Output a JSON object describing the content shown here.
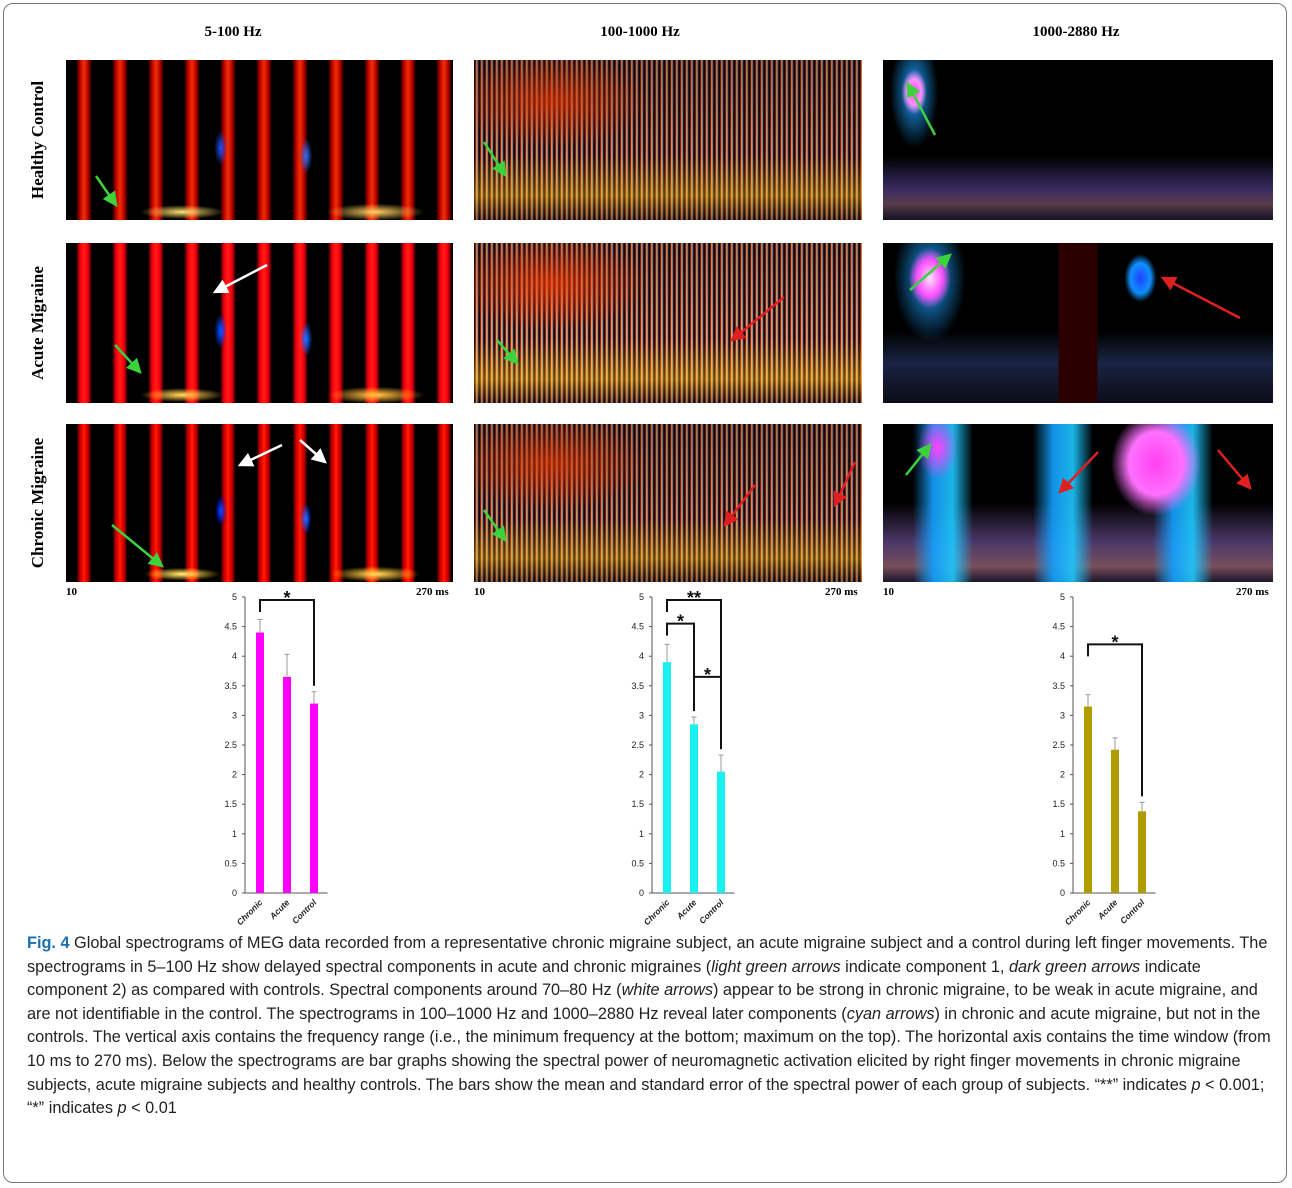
{
  "panels": {
    "column_titles": [
      "5-100 Hz",
      "100-1000 Hz",
      "1000-2880 Hz"
    ],
    "row_labels": [
      "Healthy Control",
      "Acute Migraine",
      "Chronic Migraine"
    ],
    "time_axis": {
      "start": "10",
      "end": "270 ms"
    }
  },
  "chart_data": [
    {
      "type": "bar",
      "categories": [
        "Chronic",
        "Acute",
        "Control"
      ],
      "values": [
        4.4,
        3.65,
        3.2
      ],
      "errors": [
        0.22,
        0.38,
        0.2
      ],
      "color": "#ff00ff",
      "ylim": [
        0,
        5
      ],
      "yticks": [
        0,
        0.5,
        1,
        1.5,
        2,
        2.5,
        3,
        3.5,
        4,
        4.5,
        5
      ],
      "annotations": [
        {
          "text": "*",
          "between": [
            "Chronic",
            "Control"
          ]
        }
      ]
    },
    {
      "type": "bar",
      "categories": [
        "Chronic",
        "Acute",
        "Control"
      ],
      "values": [
        3.9,
        2.85,
        2.05
      ],
      "errors": [
        0.3,
        0.12,
        0.28
      ],
      "color": "#19f0f0",
      "ylim": [
        0,
        5
      ],
      "yticks": [
        0,
        0.5,
        1,
        1.5,
        2,
        2.5,
        3,
        3.5,
        4,
        4.5,
        5
      ],
      "annotations": [
        {
          "text": "**",
          "between": [
            "Chronic",
            "Control"
          ]
        },
        {
          "text": "*",
          "between": [
            "Chronic",
            "Acute"
          ]
        },
        {
          "text": "*",
          "between": [
            "Acute",
            "Control"
          ]
        }
      ]
    },
    {
      "type": "bar",
      "categories": [
        "Chronic",
        "Acute",
        "Control"
      ],
      "values": [
        3.15,
        2.42,
        1.38
      ],
      "errors": [
        0.2,
        0.2,
        0.15
      ],
      "color": "#b09c00",
      "ylim": [
        0,
        5
      ],
      "yticks": [
        0,
        0.5,
        1,
        1.5,
        2,
        2.5,
        3,
        3.5,
        4,
        4.5,
        5
      ],
      "annotations": [
        {
          "text": "*",
          "between": [
            "Chronic",
            "Control"
          ]
        }
      ]
    }
  ],
  "caption": {
    "label": "Fig. 4",
    "runs": [
      {
        "text": " Global spectrograms of MEG data recorded from a representative chronic migraine subject, an acute migraine subject and a control during left finger movements. The spectrograms in 5–100 Hz show delayed spectral components in acute and chronic migraines ("
      },
      {
        "text": "light green arrows",
        "italic": true
      },
      {
        "text": " indicate component 1, "
      },
      {
        "text": "dark green arrows",
        "italic": true
      },
      {
        "text": " indicate component 2) as compared with controls. Spectral components around 70–80 Hz ("
      },
      {
        "text": "white arrows",
        "italic": true
      },
      {
        "text": ") appear to be strong in chronic migraine, to be weak in acute migraine, and are not identifiable in the control. The spectrograms in 100–1000 Hz and 1000–2880 Hz reveal later components ("
      },
      {
        "text": "cyan arrows",
        "italic": true
      },
      {
        "text": ") in chronic and acute migraine, but not in the controls. The vertical axis contains the frequency range (i.e., the minimum frequency at the bottom; maximum on the top). The horizontal axis contains the time window (from 10 ms to 270 ms). Below the spectrograms are bar graphs showing the spectral power of neuromagnetic activation elicited by right finger movements in chronic migraine subjects, acute migraine subjects and healthy controls. The bars show the mean and standard error of the spectral power of each group of subjects. “**” indicates "
      },
      {
        "text": "p",
        "italic": true
      },
      {
        "text": " < 0.001; “*” indicates "
      },
      {
        "text": "p",
        "italic": true
      },
      {
        "text": " < 0.01"
      }
    ]
  }
}
